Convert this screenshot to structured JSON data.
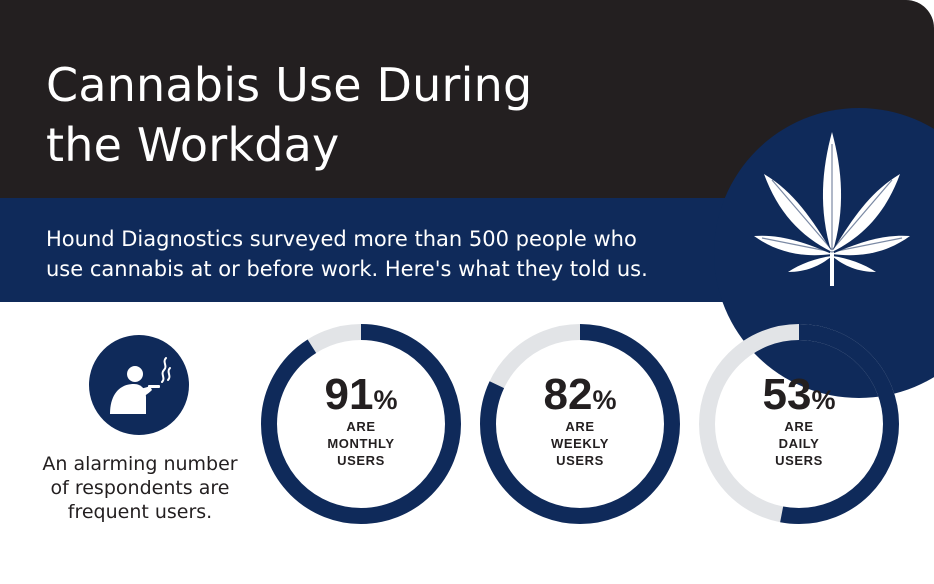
{
  "header": {
    "title_line1": "Cannabis Use During",
    "title_line2": "the Workday"
  },
  "intro": {
    "line1": "Hound Diagnostics surveyed more than 500 people who",
    "line2": "use cannabis at or before work. Here's what they told us."
  },
  "icons": {
    "leaf": "cannabis-leaf-icon",
    "smoker": "person-smoking-icon"
  },
  "caption": {
    "line1": "An alarming number",
    "line2": "of respondents are",
    "line3": "frequent users."
  },
  "colors": {
    "dark": "#231f20",
    "navy": "#0f2a5a",
    "ring_track": "#e2e4e7",
    "white": "#ffffff"
  },
  "chart_data": {
    "type": "donut",
    "unit": "%",
    "series": [
      {
        "value": 91,
        "label_line1": "ARE",
        "label_line2": "MONTHLY",
        "label_line3": "USERS"
      },
      {
        "value": 82,
        "label_line1": "ARE",
        "label_line2": "WEEKLY",
        "label_line3": "USERS"
      },
      {
        "value": 53,
        "label_line1": "ARE",
        "label_line2": "DAILY",
        "label_line3": "USERS"
      }
    ],
    "ylim": [
      0,
      100
    ]
  }
}
